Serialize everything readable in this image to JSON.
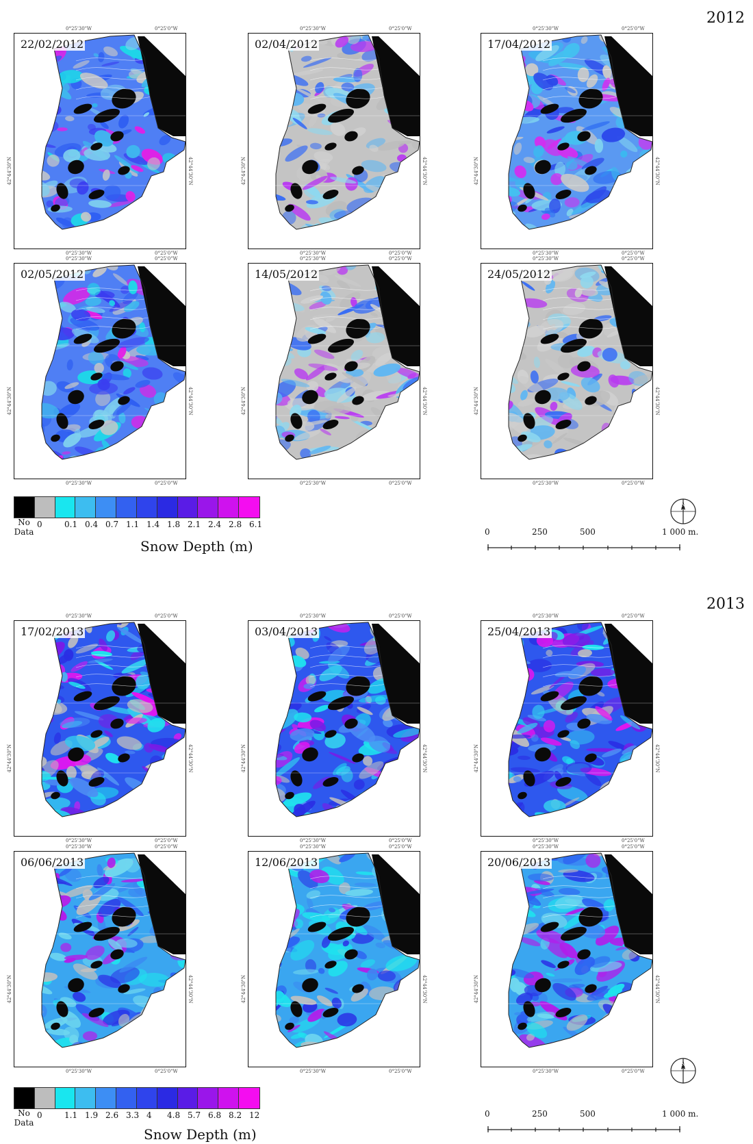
{
  "years": [
    {
      "label": "2012",
      "panels": [
        {
          "date": "22/02/2012",
          "palette": "a2012",
          "coords": {
            "lon_left": "0°25'30\"W",
            "lon_right": "0°25'0\"W",
            "lat": "42°44'30\"N"
          }
        },
        {
          "date": "02/04/2012",
          "palette": "b2012",
          "coords": {
            "lon_left": "0°25'30\"W",
            "lon_right": "0°25'0\"W",
            "lat": "42°44'30\"N"
          }
        },
        {
          "date": "17/04/2012",
          "palette": "c2012",
          "coords": {
            "lon_left": "0°25'30\"W",
            "lon_right": "0°25'0\"W",
            "lat": "42°44'30\"N"
          }
        },
        {
          "date": "02/05/2012",
          "palette": "a2012",
          "coords": {
            "lon_left": "0°25'30\"W",
            "lon_right": "0°25'0\"W",
            "lat": "42°44'30\"N"
          }
        },
        {
          "date": "14/05/2012",
          "palette": "b2012",
          "coords": {
            "lon_left": "0°25'30\"W",
            "lon_right": "0°25'0\"W",
            "lat": "42°44'30\"N"
          }
        },
        {
          "date": "24/05/2012",
          "palette": "b2012",
          "coords": {
            "lon_left": "0°25'30\"W",
            "lon_right": "0°25'0\"W",
            "lat": "42°44'30\"N"
          }
        }
      ],
      "legend": {
        "nodata_label": [
          "No",
          "Data"
        ],
        "ticks": [
          "0",
          "0.1",
          "0.4",
          "0.7",
          "1.1",
          "1.4",
          "1.8",
          "2.1",
          "2.4",
          "2.8",
          "6.1"
        ],
        "title": "Snow Depth (m)"
      }
    },
    {
      "label": "2013",
      "panels": [
        {
          "date": "17/02/2013",
          "palette": "a2013",
          "coords": {
            "lon_left": "0°25'30\"W",
            "lon_right": "0°25'0\"W",
            "lat": "42°44'30\"N"
          }
        },
        {
          "date": "03/04/2013",
          "palette": "a2013",
          "coords": {
            "lon_left": "0°25'30\"W",
            "lon_right": "0°25'0\"W",
            "lat": "42°44'30\"N"
          }
        },
        {
          "date": "25/04/2013",
          "palette": "a2013",
          "coords": {
            "lon_left": "0°25'30\"W",
            "lon_right": "0°25'0\"W",
            "lat": "42°44'30\"N"
          }
        },
        {
          "date": "06/06/2013",
          "palette": "b2013",
          "coords": {
            "lon_left": "0°25'30\"W",
            "lon_right": "0°25'0\"W",
            "lat": "42°44'30\"N"
          }
        },
        {
          "date": "12/06/2013",
          "palette": "b2013",
          "coords": {
            "lon_left": "0°25'30\"W",
            "lon_right": "0°25'0\"W",
            "lat": "42°44'30\"N"
          }
        },
        {
          "date": "20/06/2013",
          "palette": "b2013",
          "coords": {
            "lon_left": "0°25'30\"W",
            "lon_right": "0°25'0\"W",
            "lat": "42°44'30\"N"
          }
        }
      ],
      "legend": {
        "nodata_label": [
          "No",
          "Data"
        ],
        "ticks": [
          "0",
          "1.1",
          "1.9",
          "2.6",
          "3.3",
          "4",
          "4.8",
          "5.7",
          "6.8",
          "8.2",
          "12"
        ],
        "title": "Snow Depth (m)"
      }
    }
  ],
  "legend_colors": [
    "#000000",
    "#bdbdbd",
    "#19e6ef",
    "#3dbdf0",
    "#3d8ef4",
    "#3361f0",
    "#2f44ec",
    "#2b2ae3",
    "#5a1ce6",
    "#9a16ea",
    "#cf12ee",
    "#f40df0"
  ],
  "scale": {
    "ticks": [
      "0",
      "250",
      "500",
      "1 000 m."
    ]
  },
  "north_symbol": "N"
}
